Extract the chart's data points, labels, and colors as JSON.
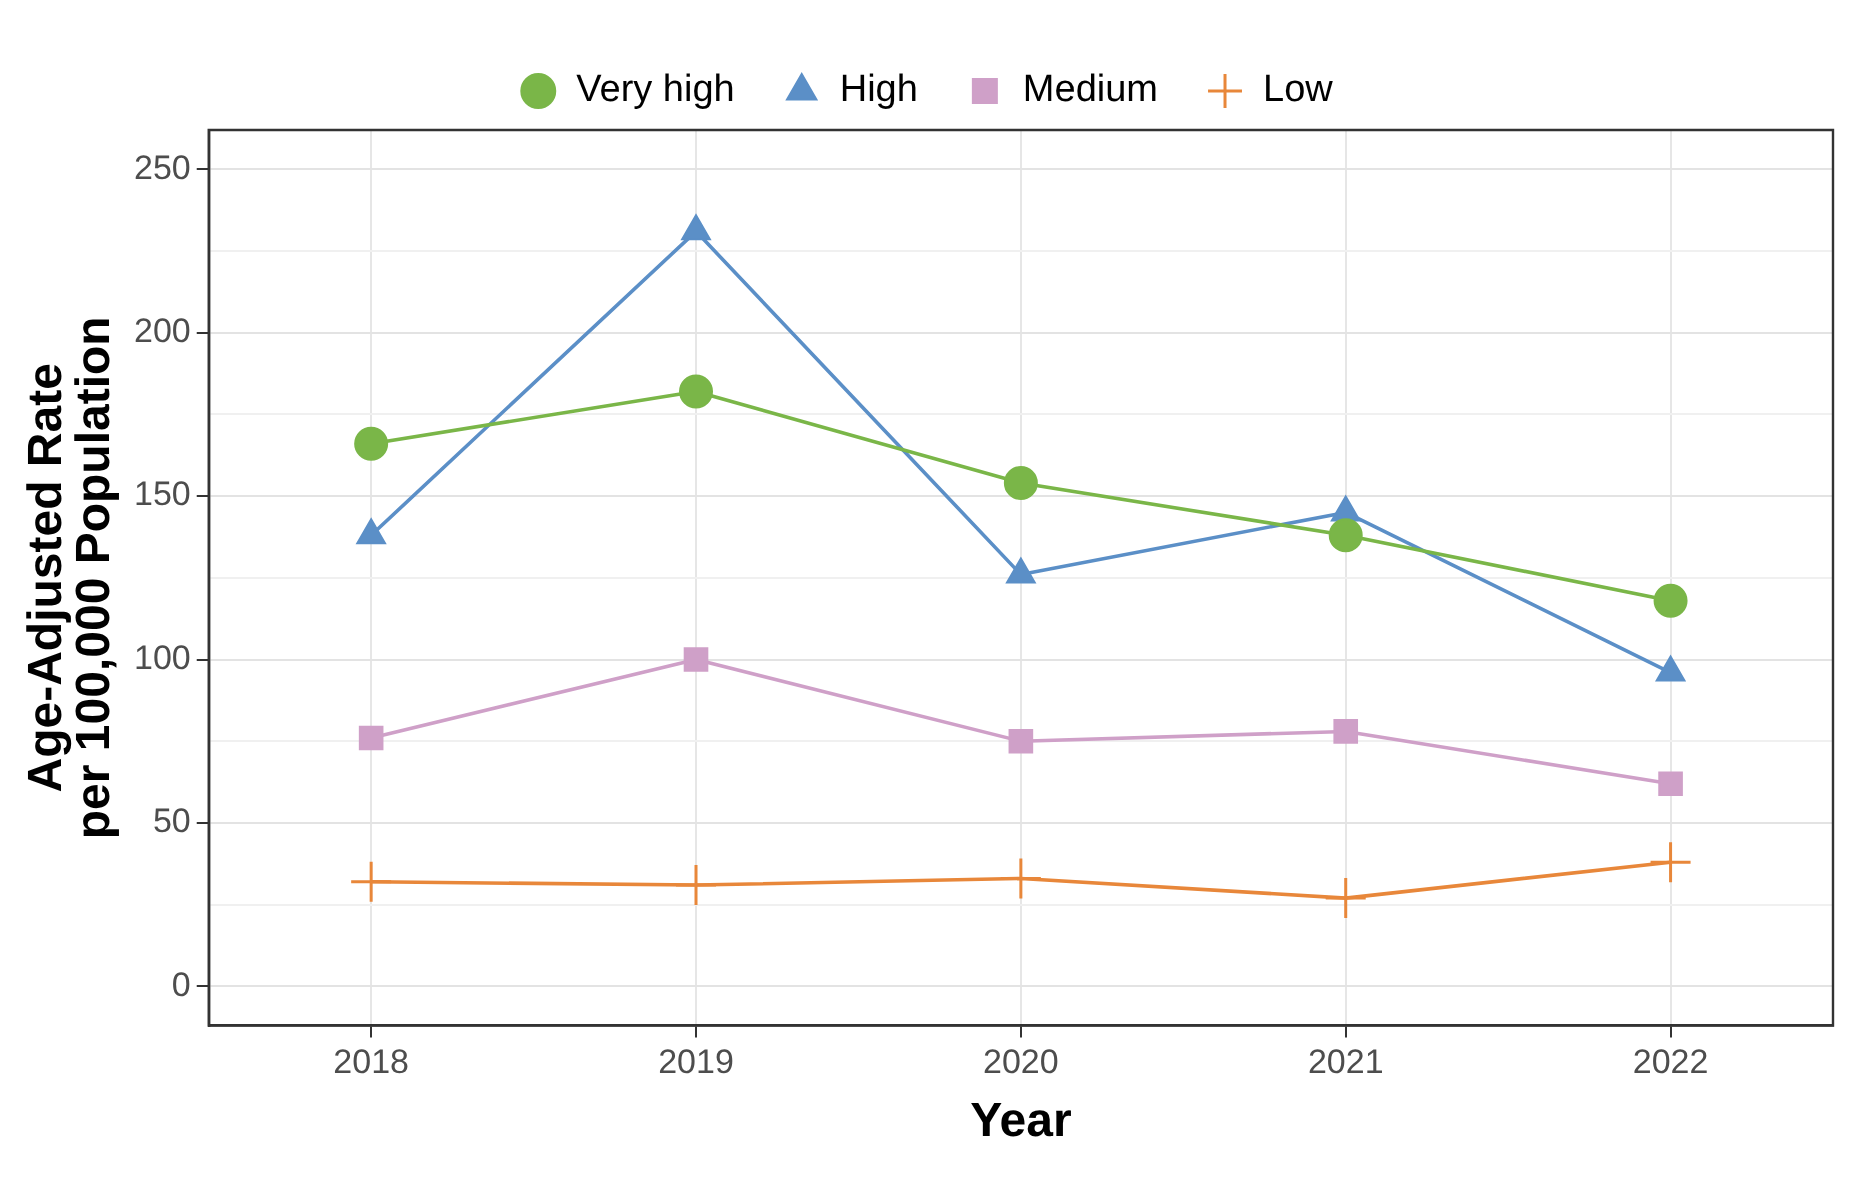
{
  "chart_data": {
    "type": "line",
    "xlabel": "Year",
    "ylabel": "Age-Adjusted Rate\nper 100,000 Population",
    "categories": [
      "2018",
      "2019",
      "2020",
      "2021",
      "2022"
    ],
    "series": [
      {
        "name": "Very high",
        "color": "#7ab648",
        "marker": "circle",
        "values": [
          166,
          182,
          154,
          138,
          118
        ]
      },
      {
        "name": "High",
        "color": "#5b8fc7",
        "marker": "triangle",
        "values": [
          138,
          231,
          126,
          145,
          96
        ]
      },
      {
        "name": "Medium",
        "color": "#cfa0c8",
        "marker": "square",
        "values": [
          76,
          100,
          75,
          78,
          62
        ]
      },
      {
        "name": "Low",
        "color": "#e8873a",
        "marker": "cross",
        "values": [
          32,
          31,
          33,
          27,
          38
        ]
      }
    ],
    "ylim": [
      -12,
      262
    ],
    "yticks": [
      0,
      {
        "value": 25,
        "label": null
      },
      50,
      {
        "value": 75,
        "label": null
      },
      100,
      {
        "value": 125,
        "label": null
      },
      150,
      {
        "value": 175,
        "label": null
      },
      200,
      {
        "value": 225,
        "label": null
      },
      250
    ],
    "grid": true,
    "legend": "top",
    "line_style": "solid"
  }
}
